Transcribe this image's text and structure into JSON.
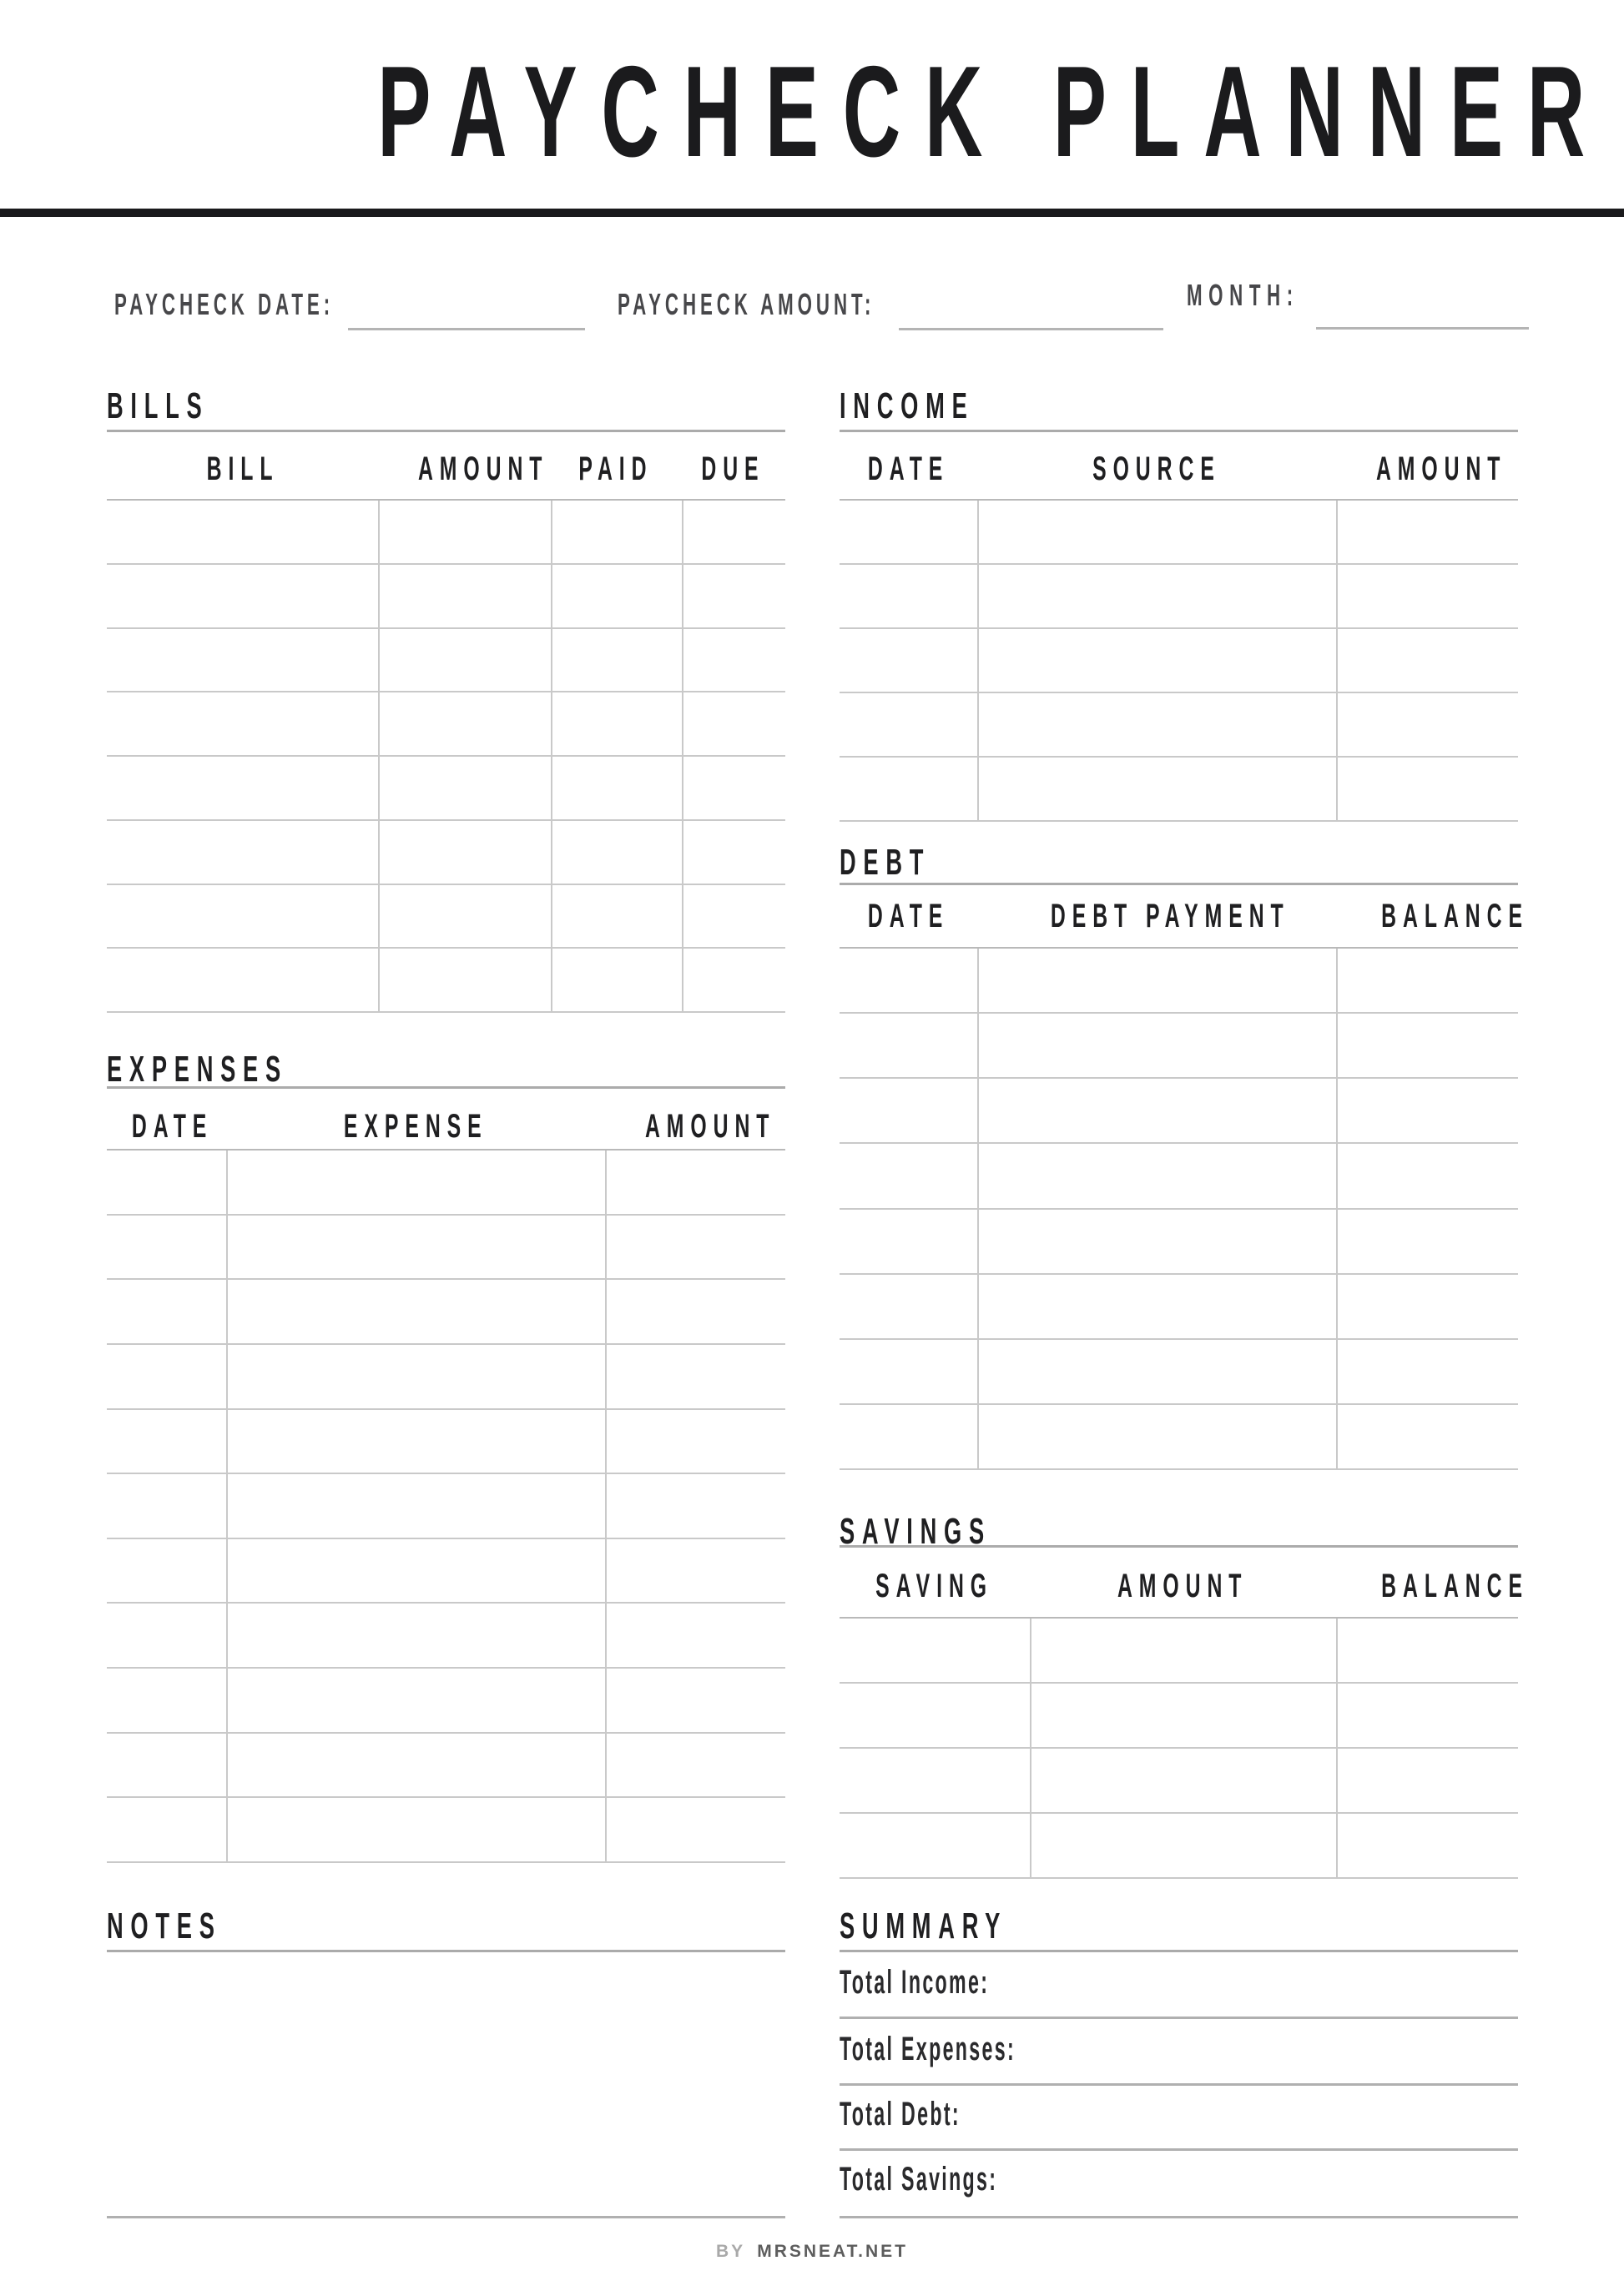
{
  "title": "PAYCHECK PLANNER",
  "fields": {
    "paycheck_date": {
      "label": "PAYCHECK DATE:",
      "value": ""
    },
    "paycheck_amount": {
      "label": "PAYCHECK AMOUNT:",
      "value": ""
    },
    "month": {
      "label": "MONTH:",
      "value": ""
    }
  },
  "sections": {
    "bills": {
      "heading": "BILLS",
      "columns": [
        "BILL",
        "AMOUNT",
        "PAID",
        "DUE"
      ],
      "row_count": 8
    },
    "expenses": {
      "heading": "EXPENSES",
      "columns": [
        "DATE",
        "EXPENSE",
        "AMOUNT"
      ],
      "row_count": 11
    },
    "notes": {
      "heading": "NOTES"
    },
    "income": {
      "heading": "INCOME",
      "columns": [
        "DATE",
        "SOURCE",
        "AMOUNT"
      ],
      "row_count": 5
    },
    "debt": {
      "heading": "DEBT",
      "columns": [
        "DATE",
        "DEBT PAYMENT",
        "BALANCE"
      ],
      "row_count": 8
    },
    "savings": {
      "heading": "SAVINGS",
      "columns": [
        "SAVING",
        "AMOUNT",
        "BALANCE"
      ],
      "row_count": 4
    },
    "summary": {
      "heading": "SUMMARY",
      "items": [
        "Total Income:",
        "Total Expenses:",
        "Total Debt:",
        "Total Savings:"
      ]
    }
  },
  "footer": {
    "by": "BY",
    "brand": "MRSNEAT.NET"
  },
  "colors": {
    "ink": "#1b1b1d",
    "label_gray": "#47474a",
    "rule_light": "#c9c9c9",
    "rule_mid": "#ababab",
    "top_bar": "#1a1a1c",
    "footer_by": "#a9a9a9",
    "footer_brand": "#5d5d5d"
  }
}
